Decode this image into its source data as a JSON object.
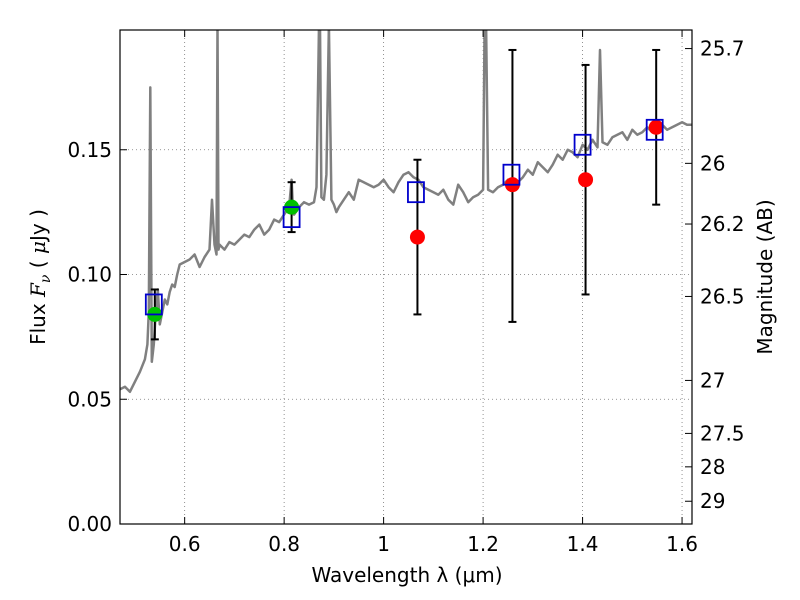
{
  "chart_data": {
    "type": "scatter",
    "xlabel": "Wavelength  λ (μm)",
    "ylabel_left": "Flux  Fν ( μJy )",
    "ylabel_right": "Magnitude (AB)",
    "xlim": [
      0.47,
      1.62
    ],
    "ylim": [
      0.0,
      0.198
    ],
    "x_ticks": [
      0.6,
      0.8,
      1.0,
      1.2,
      1.4,
      1.6
    ],
    "x_tick_labels": [
      "0.6",
      "0.8",
      "1",
      "1.2",
      "1.4",
      "1.6"
    ],
    "y_ticks": [
      0.0,
      0.05,
      0.1,
      0.15
    ],
    "y_tick_labels": [
      "0.00",
      "0.05",
      "0.10",
      "0.15"
    ],
    "right_ticks": [
      {
        "mag": 25.7,
        "label": "25.7"
      },
      {
        "mag": 26.0,
        "label": "26"
      },
      {
        "mag": 26.2,
        "label": "26.2"
      },
      {
        "mag": 26.5,
        "label": "26.5"
      },
      {
        "mag": 27.0,
        "label": "27"
      },
      {
        "mag": 27.5,
        "label": "27.5"
      },
      {
        "mag": 28.0,
        "label": "28"
      },
      {
        "mag": 29.0,
        "label": "29"
      }
    ],
    "grid": true,
    "colors": {
      "sed": "#808080",
      "model_box": "#0000cc",
      "obs_green": "#00c000",
      "obs_red": "#ff0000",
      "errorbar": "#000000",
      "grid": "#777777"
    },
    "model_sed": {
      "x": [
        0.47,
        0.48,
        0.49,
        0.5,
        0.51,
        0.52,
        0.525,
        0.528,
        0.531,
        0.534,
        0.538,
        0.542,
        0.546,
        0.55,
        0.555,
        0.56,
        0.565,
        0.57,
        0.575,
        0.58,
        0.585,
        0.59,
        0.6,
        0.61,
        0.62,
        0.63,
        0.64,
        0.65,
        0.655,
        0.66,
        0.664,
        0.666,
        0.668,
        0.67,
        0.68,
        0.69,
        0.7,
        0.71,
        0.72,
        0.73,
        0.74,
        0.75,
        0.76,
        0.77,
        0.78,
        0.79,
        0.8,
        0.81,
        0.815,
        0.818,
        0.82,
        0.83,
        0.84,
        0.85,
        0.86,
        0.865,
        0.87,
        0.872,
        0.875,
        0.88,
        0.885,
        0.89,
        0.895,
        0.9,
        0.905,
        0.91,
        0.92,
        0.93,
        0.94,
        0.95,
        0.96,
        0.97,
        0.98,
        0.99,
        1.0,
        1.01,
        1.02,
        1.03,
        1.04,
        1.05,
        1.06,
        1.07,
        1.08,
        1.09,
        1.1,
        1.11,
        1.12,
        1.13,
        1.14,
        1.15,
        1.16,
        1.17,
        1.18,
        1.19,
        1.2,
        1.203,
        1.206,
        1.21,
        1.22,
        1.23,
        1.24,
        1.25,
        1.26,
        1.27,
        1.28,
        1.29,
        1.3,
        1.31,
        1.32,
        1.33,
        1.34,
        1.35,
        1.36,
        1.37,
        1.38,
        1.39,
        1.4,
        1.41,
        1.42,
        1.43,
        1.435,
        1.44,
        1.45,
        1.46,
        1.47,
        1.48,
        1.49,
        1.5,
        1.51,
        1.52,
        1.53,
        1.54,
        1.55,
        1.56,
        1.57,
        1.58,
        1.59,
        1.6,
        1.61,
        1.62
      ],
      "y": [
        0.054,
        0.055,
        0.053,
        0.057,
        0.061,
        0.066,
        0.072,
        0.085,
        0.175,
        0.065,
        0.072,
        0.085,
        0.094,
        0.08,
        0.085,
        0.09,
        0.088,
        0.093,
        0.096,
        0.095,
        0.1,
        0.104,
        0.105,
        0.106,
        0.108,
        0.103,
        0.107,
        0.11,
        0.13,
        0.112,
        0.108,
        0.2,
        0.11,
        0.112,
        0.11,
        0.113,
        0.112,
        0.114,
        0.116,
        0.115,
        0.118,
        0.12,
        0.116,
        0.118,
        0.122,
        0.121,
        0.124,
        0.127,
        0.138,
        0.125,
        0.124,
        0.127,
        0.129,
        0.128,
        0.129,
        0.135,
        0.2,
        0.2,
        0.131,
        0.13,
        0.14,
        0.2,
        0.13,
        0.128,
        0.125,
        0.127,
        0.13,
        0.133,
        0.13,
        0.138,
        0.137,
        0.136,
        0.135,
        0.136,
        0.138,
        0.135,
        0.133,
        0.137,
        0.14,
        0.141,
        0.139,
        0.138,
        0.135,
        0.134,
        0.133,
        0.132,
        0.134,
        0.13,
        0.128,
        0.136,
        0.133,
        0.129,
        0.131,
        0.132,
        0.134,
        0.2,
        0.2,
        0.134,
        0.133,
        0.135,
        0.136,
        0.138,
        0.135,
        0.137,
        0.139,
        0.142,
        0.14,
        0.145,
        0.143,
        0.141,
        0.144,
        0.148,
        0.146,
        0.15,
        0.149,
        0.147,
        0.152,
        0.15,
        0.154,
        0.151,
        0.19,
        0.153,
        0.152,
        0.155,
        0.156,
        0.157,
        0.154,
        0.158,
        0.156,
        0.157,
        0.159,
        0.157,
        0.158,
        0.16,
        0.158,
        0.159,
        0.16,
        0.161,
        0.16,
        0.16
      ]
    },
    "model_boxes": [
      {
        "x": 0.538,
        "y": 0.088
      },
      {
        "x": 0.815,
        "y": 0.123
      },
      {
        "x": 1.065,
        "y": 0.133
      },
      {
        "x": 1.257,
        "y": 0.14
      },
      {
        "x": 1.4,
        "y": 0.152
      },
      {
        "x": 1.545,
        "y": 0.158
      }
    ],
    "observations": [
      {
        "x": 0.54,
        "y": 0.084,
        "yerr_low": 0.074,
        "yerr_high": 0.094,
        "color": "green"
      },
      {
        "x": 0.815,
        "y": 0.127,
        "yerr_low": 0.117,
        "yerr_high": 0.137,
        "color": "green"
      },
      {
        "x": 1.068,
        "y": 0.115,
        "yerr_low": 0.084,
        "yerr_high": 0.146,
        "color": "red"
      },
      {
        "x": 1.259,
        "y": 0.136,
        "yerr_low": 0.081,
        "yerr_high": 0.19,
        "color": "red"
      },
      {
        "x": 1.406,
        "y": 0.138,
        "yerr_low": 0.092,
        "yerr_high": 0.184,
        "color": "red"
      },
      {
        "x": 1.548,
        "y": 0.159,
        "yerr_low": 0.128,
        "yerr_high": 0.19,
        "color": "red"
      }
    ]
  }
}
